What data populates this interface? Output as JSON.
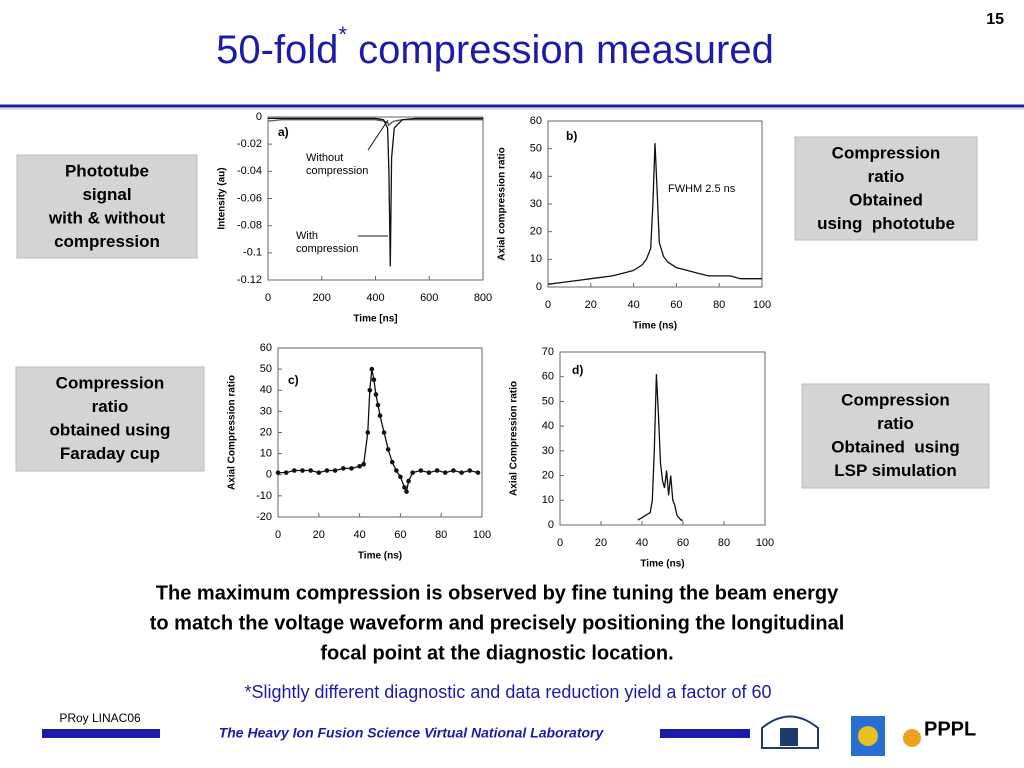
{
  "page_number": "15",
  "title": {
    "main": "50-fold",
    "sup": "*",
    "rest": " compression measured"
  },
  "boxes": [
    [
      "Phototube",
      "signal",
      "with & without",
      "compression"
    ],
    [
      "Compression",
      "ratio",
      "Obtained",
      "using  phototube"
    ],
    [
      "Compression",
      "ratio",
      "obtained using",
      "Faraday cup"
    ],
    [
      "Compression",
      "ratio",
      "Obtained  using",
      "LSP simulation"
    ]
  ],
  "statement": [
    "The maximum compression is observed by fine tuning the beam energy",
    "to match the voltage waveform and precisely positioning the longitudinal",
    "focal point at the diagnostic location."
  ],
  "footnote": "*Slightly different diagnostic and data reduction yield a factor of  60",
  "footer": {
    "author": "PRoy LINAC06",
    "lab": "The Heavy Ion Fusion Science Virtual National Laboratory",
    "logo": "PPPL"
  },
  "chart_data": [
    {
      "type": "line",
      "label": "a)",
      "x_label": "Time [ns]",
      "y_label": "Intensity (au)",
      "annotations": [
        [
          "Without",
          "compression"
        ],
        [
          "With",
          "compression"
        ]
      ],
      "x": [
        0,
        50,
        100,
        150,
        200,
        250,
        300,
        350,
        400,
        430,
        445,
        450,
        455,
        460,
        470,
        500,
        550,
        600,
        650,
        700,
        750,
        800
      ],
      "series": [
        {
          "color": "#555555",
          "values": [
            -0.003,
            -0.002,
            -0.002,
            -0.002,
            -0.002,
            -0.002,
            -0.002,
            -0.002,
            -0.002,
            -0.003,
            -0.004,
            -0.006,
            -0.005,
            -0.004,
            -0.003,
            -0.002,
            -0.002,
            -0.002,
            -0.002,
            -0.002,
            -0.002,
            -0.002
          ]
        },
        {
          "color": "#111111",
          "values": [
            -0.001,
            -0.001,
            -0.001,
            -0.001,
            -0.001,
            -0.001,
            -0.001,
            -0.001,
            -0.001,
            -0.002,
            -0.008,
            -0.04,
            -0.11,
            -0.03,
            -0.008,
            -0.002,
            -0.001,
            -0.001,
            -0.001,
            -0.001,
            -0.001,
            -0.001
          ]
        }
      ],
      "xlim": [
        0,
        800
      ],
      "xticks": [
        0,
        200,
        400,
        600,
        800
      ],
      "ylim": [
        -0.12,
        0
      ],
      "yticks": [
        0,
        -0.02,
        -0.04,
        -0.06,
        -0.08,
        -0.1,
        -0.12
      ]
    },
    {
      "type": "line",
      "label": "b)",
      "x_label": "Time (ns)",
      "y_label": "Axial compression ratio",
      "annotations": [
        [
          "FWHM 2.5 ns"
        ]
      ],
      "x": [
        0,
        5,
        10,
        15,
        20,
        25,
        30,
        35,
        40,
        44,
        46,
        48,
        49,
        50,
        51,
        52,
        54,
        56,
        60,
        65,
        70,
        75,
        80,
        85,
        90,
        95,
        100
      ],
      "series": [
        {
          "color": "#111111",
          "values": [
            1,
            1.5,
            2,
            2.5,
            3,
            3.5,
            4,
            5,
            6,
            8,
            10,
            14,
            30,
            52,
            35,
            16,
            11,
            9,
            7,
            6,
            5,
            4,
            4,
            4,
            3,
            3,
            3
          ]
        }
      ],
      "xlim": [
        0,
        100
      ],
      "xticks": [
        0,
        20,
        40,
        60,
        80,
        100
      ],
      "ylim": [
        0,
        60
      ],
      "yticks": [
        0,
        10,
        20,
        30,
        40,
        50,
        60
      ]
    },
    {
      "type": "line",
      "label": "c)",
      "markers": true,
      "x_label": "Time (ns)",
      "y_label": "Axial  Compression ratio",
      "annotations": [],
      "x": [
        0,
        4,
        8,
        12,
        16,
        20,
        24,
        28,
        32,
        36,
        40,
        42,
        44,
        45,
        46,
        47,
        48,
        49,
        50,
        52,
        54,
        56,
        58,
        60,
        62,
        63,
        64,
        66,
        70,
        74,
        78,
        82,
        86,
        90,
        94,
        98
      ],
      "series": [
        {
          "color": "#111111",
          "values": [
            1,
            1,
            2,
            2,
            2,
            1,
            2,
            2,
            3,
            3,
            4,
            5,
            20,
            40,
            50,
            45,
            38,
            33,
            28,
            20,
            12,
            6,
            2,
            -1,
            -6,
            -8,
            -3,
            1,
            2,
            1,
            2,
            1,
            2,
            1,
            2,
            1
          ]
        }
      ],
      "xlim": [
        0,
        100
      ],
      "xticks": [
        0,
        20,
        40,
        60,
        80,
        100
      ],
      "ylim": [
        -20,
        60
      ],
      "yticks": [
        -20,
        -10,
        0,
        10,
        20,
        30,
        40,
        50,
        60
      ]
    },
    {
      "type": "line",
      "label": "d)",
      "x_label": "Time (ns)",
      "y_label": "Axial  Compression ratio",
      "annotations": [],
      "x": [
        38,
        40,
        42,
        44,
        45,
        46,
        47,
        48,
        49,
        50,
        51,
        52,
        53,
        54,
        55,
        56,
        57,
        58,
        59,
        60
      ],
      "series": [
        {
          "color": "#111111",
          "values": [
            2,
            3,
            4,
            5,
            10,
            30,
            61,
            45,
            25,
            18,
            15,
            22,
            12,
            20,
            10,
            8,
            4,
            3,
            2,
            2
          ]
        }
      ],
      "xlim": [
        0,
        100
      ],
      "xticks": [
        0,
        20,
        40,
        60,
        80,
        100
      ],
      "ylim": [
        0,
        70
      ],
      "yticks": [
        0,
        10,
        20,
        30,
        40,
        50,
        60,
        70
      ]
    }
  ]
}
